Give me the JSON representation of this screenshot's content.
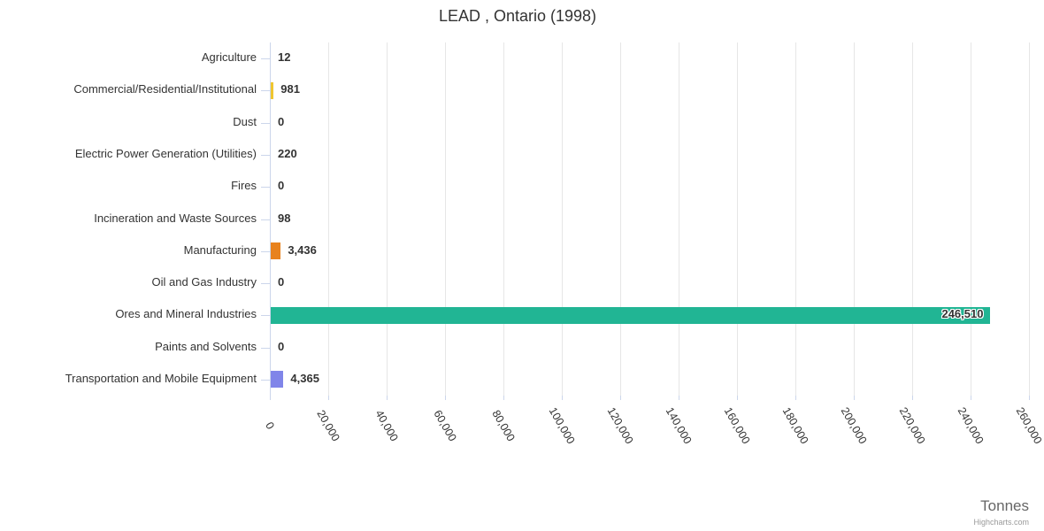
{
  "title": "LEAD , Ontario (1998)",
  "axis_title": "Tonnes",
  "credits_label": "Highcharts.com",
  "chart_data": {
    "type": "bar",
    "orientation": "horizontal",
    "title": "LEAD , Ontario (1998)",
    "xlabel": "Tonnes",
    "categories": [
      "Agriculture",
      "Commercial/Residential/Institutional",
      "Dust",
      "Electric Power Generation (Utilities)",
      "Fires",
      "Incineration and Waste Sources",
      "Manufacturing",
      "Oil and Gas Industry",
      "Ores and Mineral Industries",
      "Paints and Solvents",
      "Transportation and Mobile Equipment"
    ],
    "values": [
      12,
      981,
      0,
      220,
      0,
      98,
      3436,
      0,
      246510,
      0,
      4365
    ],
    "value_labels": [
      "12",
      "981",
      "0",
      "220",
      "0",
      "98",
      "3,436",
      "0",
      "246,510",
      "0",
      "4,365"
    ],
    "bar_colors": [
      null,
      "#efc630",
      null,
      null,
      null,
      null,
      "#e8821e",
      null,
      "#21b594",
      null,
      "#8085e9"
    ],
    "value_axis": {
      "min": 0,
      "max": 260000,
      "tick_interval": 20000,
      "tick_labels": [
        "0",
        "20,000",
        "40,000",
        "60,000",
        "80,000",
        "100,000",
        "120,000",
        "140,000",
        "160,000",
        "180,000",
        "200,000",
        "220,000",
        "240,000",
        "260,000"
      ]
    },
    "grid": true,
    "legend": "none",
    "colors": {
      "gridline": "#e6e6e6",
      "axis_line": "#ccd6eb",
      "label_text": "#333333",
      "title_text": "#333333",
      "axis_title_text": "#666666",
      "credits_text": "#999999"
    }
  }
}
